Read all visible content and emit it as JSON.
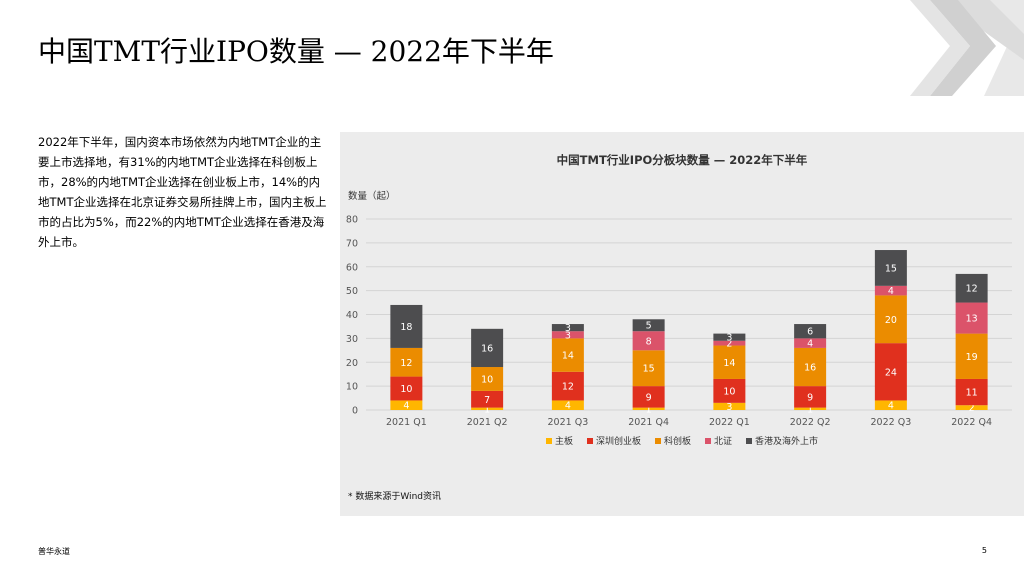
{
  "page": {
    "title": "中国TMT行业IPO数量 — 2022年下半年",
    "paragraph": "2022年下半年，国内资本市场依然为内地TMT企业的主要上市选择地，有31%的内地TMT企业选择在科创板上市，28%的内地TMT企业选择在创业板上市，14%的内地TMT企业选择在北京证券交易所挂牌上市，国内主板上市的占比为5%，而22%的内地TMT企业选择在香港及海外上市。",
    "footnote": "* 数据来源于Wind资讯",
    "brand": "普华永道",
    "page_number": "5"
  },
  "chart_data": {
    "type": "stacked_bar",
    "title": "中国TMT行业IPO分板块数量 — 2022年下半年",
    "ylabel": "数量（起）",
    "xlabel": "",
    "ylim": [
      0,
      80
    ],
    "yticks": [
      0,
      10,
      20,
      30,
      40,
      50,
      60,
      70,
      80
    ],
    "grid": true,
    "legend_position": "bottom",
    "categories": [
      "2021 Q1",
      "2021 Q2",
      "2021 Q3",
      "2021 Q4",
      "2022 Q1",
      "2022 Q2",
      "2022 Q3",
      "2022 Q4"
    ],
    "series": [
      {
        "name": "主板",
        "color": "#FFB600",
        "values": [
          4,
          1,
          4,
          1,
          3,
          1,
          4,
          2
        ]
      },
      {
        "name": "深圳创业板",
        "color": "#E0301E",
        "values": [
          10,
          7,
          12,
          9,
          10,
          9,
          24,
          11
        ]
      },
      {
        "name": "科创板",
        "color": "#EB8C00",
        "values": [
          12,
          10,
          14,
          15,
          14,
          16,
          20,
          19
        ]
      },
      {
        "name": "北证",
        "color": "#DB536A",
        "values": [
          0,
          0,
          3,
          8,
          2,
          4,
          4,
          13
        ]
      },
      {
        "name": "香港及海外上市",
        "color": "#4D4D4F",
        "values": [
          18,
          16,
          3,
          5,
          3,
          6,
          15,
          12
        ]
      }
    ]
  }
}
